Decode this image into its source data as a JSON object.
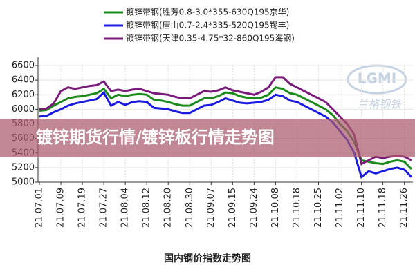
{
  "chart_data": {
    "type": "line",
    "title": "国内钢价指数走势图",
    "banner": "镀锌期货行情/镀锌板行情走势图",
    "watermark": [
      "LGMI",
      "兰格钢铁"
    ],
    "categories": [
      "21.07.01",
      null,
      null,
      "21.07.09",
      null,
      null,
      "21.07.19",
      null,
      null,
      "21.07.27",
      null,
      null,
      "21.08.04",
      null,
      null,
      "21.08.12",
      null,
      null,
      "21.08.20",
      null,
      null,
      "21.08.30",
      null,
      null,
      "21.09.07",
      null,
      null,
      "21.09.15",
      null,
      null,
      "21.09.24",
      null,
      null,
      "21.10.08",
      null,
      null,
      "21.10.18",
      null,
      null,
      "21.10.25",
      null,
      null,
      "21.11.02",
      null,
      null,
      "21.11.10",
      null,
      null,
      "21.11.18",
      null,
      null,
      "21.11.26",
      null
    ],
    "series": [
      {
        "name": "镀锌带钢(胜芳0.8-3.0*355-630Q195京华)",
        "color": "#1a8a1a",
        "values": [
          5980,
          5990,
          6050,
          6100,
          6150,
          6170,
          6180,
          6200,
          6220,
          6280,
          6150,
          6200,
          6180,
          6200,
          6210,
          6200,
          6130,
          6120,
          6100,
          6070,
          6050,
          6050,
          6100,
          6150,
          6150,
          6180,
          6230,
          6220,
          6180,
          6160,
          6150,
          6160,
          6200,
          6300,
          6280,
          6220,
          6200,
          6150,
          6100,
          6050,
          6000,
          5920,
          5800,
          5700,
          5550,
          5300,
          5280,
          5260,
          5250,
          5280,
          5300,
          5280,
          5180
        ]
      },
      {
        "name": "镀锌带钢(唐山0.7-2.4*335-520Q195锡丰)",
        "color": "#1a1ae0",
        "values": [
          5900,
          5910,
          5960,
          6000,
          6050,
          6080,
          6100,
          6120,
          6140,
          6230,
          6050,
          6100,
          6060,
          6100,
          6110,
          6100,
          6020,
          6010,
          6000,
          5970,
          5950,
          5950,
          6000,
          6050,
          6060,
          6100,
          6150,
          6120,
          6090,
          6080,
          6090,
          6100,
          6130,
          6200,
          6180,
          6120,
          6100,
          6050,
          6000,
          5950,
          5900,
          5820,
          5700,
          5580,
          5400,
          5070,
          5150,
          5120,
          5150,
          5180,
          5200,
          5170,
          5070
        ]
      },
      {
        "name": "镀锌带钢(天津0.35-4.75*32-860Q195海钢)",
        "color": "#7a1a7a",
        "values": [
          6000,
          6010,
          6080,
          6250,
          6300,
          6280,
          6300,
          6320,
          6330,
          6380,
          6250,
          6270,
          6250,
          6270,
          6280,
          6250,
          6220,
          6210,
          6200,
          6170,
          6150,
          6150,
          6200,
          6250,
          6240,
          6260,
          6300,
          6260,
          6240,
          6220,
          6200,
          6240,
          6300,
          6440,
          6440,
          6350,
          6300,
          6250,
          6200,
          6150,
          6100,
          6000,
          5900,
          5800,
          5650,
          5250,
          5300,
          5350,
          5330,
          5350,
          5360,
          5350,
          5300
        ]
      }
    ],
    "ylim": [
      5000,
      6600
    ],
    "yticks": [
      5000,
      5200,
      5400,
      5600,
      5800,
      6000,
      6200,
      6400,
      6600
    ],
    "grid": true
  }
}
